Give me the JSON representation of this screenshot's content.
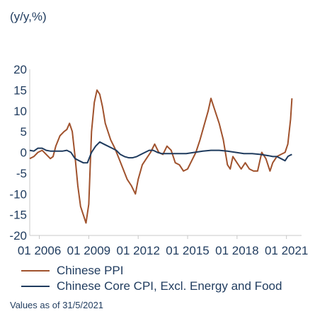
{
  "chart_data": {
    "type": "line",
    "unit_label": "(y/y,%)",
    "ylim": [
      -20,
      20
    ],
    "yticks": [
      20,
      15,
      10,
      5,
      0,
      -5,
      -10,
      -15,
      -20
    ],
    "xlim": [
      "2005-06",
      "2021-12"
    ],
    "xticks": [
      {
        "date": "2006-01",
        "label": "01 2006"
      },
      {
        "date": "2009-01",
        "label": "01 2009"
      },
      {
        "date": "2012-01",
        "label": "01 2012"
      },
      {
        "date": "2015-01",
        "label": "01 2015"
      },
      {
        "date": "2018-01",
        "label": "01 2018"
      },
      {
        "date": "2021-01",
        "label": "01 2021"
      }
    ],
    "grid": false,
    "legend_position": "bottom-left",
    "footnote": "Values as of 31/5/2021",
    "series": [
      {
        "name": "Chinese PPI",
        "color": "#a0522d",
        "points": [
          [
            "2005-06",
            -1.5
          ],
          [
            "2005-09",
            -1.0
          ],
          [
            "2005-12",
            0.0
          ],
          [
            "2006-03",
            0.5
          ],
          [
            "2006-06",
            -0.5
          ],
          [
            "2006-09",
            -1.5
          ],
          [
            "2006-11",
            -1.0
          ],
          [
            "2007-01",
            1.5
          ],
          [
            "2007-04",
            4.0
          ],
          [
            "2007-07",
            5.0
          ],
          [
            "2007-09",
            5.5
          ],
          [
            "2007-11",
            7.0
          ],
          [
            "2008-01",
            5.0
          ],
          [
            "2008-03",
            -1.0
          ],
          [
            "2008-05",
            -8.0
          ],
          [
            "2008-07",
            -13.0
          ],
          [
            "2008-09",
            -15.0
          ],
          [
            "2008-11",
            -17.0
          ],
          [
            "2009-01",
            -12.5
          ],
          [
            "2009-03",
            5.0
          ],
          [
            "2009-05",
            12.0
          ],
          [
            "2009-07",
            15.0
          ],
          [
            "2009-09",
            14.0
          ],
          [
            "2009-11",
            11.0
          ],
          [
            "2010-01",
            7.0
          ],
          [
            "2010-03",
            5.0
          ],
          [
            "2010-05",
            3.0
          ],
          [
            "2010-08",
            1.0
          ],
          [
            "2010-11",
            -1.5
          ],
          [
            "2011-02",
            -4.0
          ],
          [
            "2011-05",
            -6.5
          ],
          [
            "2011-08",
            -8.0
          ],
          [
            "2011-11",
            -10.0
          ],
          [
            "2012-01",
            -6.5
          ],
          [
            "2012-04",
            -3.0
          ],
          [
            "2012-07",
            -1.5
          ],
          [
            "2012-10",
            0.0
          ],
          [
            "2013-01",
            2.0
          ],
          [
            "2013-04",
            0.0
          ],
          [
            "2013-07",
            -0.5
          ],
          [
            "2013-10",
            1.5
          ],
          [
            "2014-01",
            0.5
          ],
          [
            "2014-04",
            -2.5
          ],
          [
            "2014-07",
            -3.0
          ],
          [
            "2014-10",
            -4.5
          ],
          [
            "2015-01",
            -4.0
          ],
          [
            "2015-04",
            -2.0
          ],
          [
            "2015-07",
            0.0
          ],
          [
            "2015-10",
            3.0
          ],
          [
            "2016-01",
            6.5
          ],
          [
            "2016-04",
            10.0
          ],
          [
            "2016-06",
            13.0
          ],
          [
            "2016-09",
            10.0
          ],
          [
            "2016-12",
            7.0
          ],
          [
            "2017-03",
            3.0
          ],
          [
            "2017-06",
            -3.0
          ],
          [
            "2017-08",
            -4.0
          ],
          [
            "2017-10",
            -1.0
          ],
          [
            "2018-01",
            -2.5
          ],
          [
            "2018-04",
            -4.0
          ],
          [
            "2018-07",
            -2.5
          ],
          [
            "2018-10",
            -4.0
          ],
          [
            "2019-01",
            -4.5
          ],
          [
            "2019-04",
            -4.5
          ],
          [
            "2019-07",
            0.0
          ],
          [
            "2019-10",
            -1.5
          ],
          [
            "2020-01",
            -4.5
          ],
          [
            "2020-03",
            -2.5
          ],
          [
            "2020-06",
            -1.0
          ],
          [
            "2020-09",
            -0.5
          ],
          [
            "2020-12",
            0.0
          ],
          [
            "2021-02",
            2.0
          ],
          [
            "2021-04",
            8.0
          ],
          [
            "2021-05",
            13.0
          ]
        ]
      },
      {
        "name": "Chinese Core CPI, Excl. Energy and Food",
        "color": "#1f3b5e",
        "points": [
          [
            "2005-06",
            0.5
          ],
          [
            "2005-09",
            0.3
          ],
          [
            "2005-12",
            1.0
          ],
          [
            "2006-03",
            1.0
          ],
          [
            "2006-06",
            0.5
          ],
          [
            "2006-09",
            0.3
          ],
          [
            "2006-12",
            0.3
          ],
          [
            "2007-03",
            0.3
          ],
          [
            "2007-06",
            0.3
          ],
          [
            "2007-09",
            0.5
          ],
          [
            "2007-12",
            0.0
          ],
          [
            "2008-03",
            -1.5
          ],
          [
            "2008-06",
            -2.0
          ],
          [
            "2008-09",
            -2.5
          ],
          [
            "2008-12",
            -2.5
          ],
          [
            "2009-03",
            0.0
          ],
          [
            "2009-06",
            1.5
          ],
          [
            "2009-09",
            2.5
          ],
          [
            "2009-12",
            2.0
          ],
          [
            "2010-03",
            1.5
          ],
          [
            "2010-06",
            1.0
          ],
          [
            "2010-09",
            0.5
          ],
          [
            "2010-12",
            -0.5
          ],
          [
            "2011-03",
            -1.0
          ],
          [
            "2011-06",
            -1.3
          ],
          [
            "2011-09",
            -1.3
          ],
          [
            "2011-12",
            -1.0
          ],
          [
            "2012-03",
            -0.5
          ],
          [
            "2012-06",
            0.0
          ],
          [
            "2012-09",
            0.5
          ],
          [
            "2012-12",
            0.5
          ],
          [
            "2013-03",
            0.0
          ],
          [
            "2013-06",
            -0.3
          ],
          [
            "2013-09",
            -0.3
          ],
          [
            "2013-12",
            -0.3
          ],
          [
            "2014-06",
            -0.3
          ],
          [
            "2014-12",
            -0.3
          ],
          [
            "2015-06",
            0.0
          ],
          [
            "2015-12",
            0.3
          ],
          [
            "2016-06",
            0.5
          ],
          [
            "2016-12",
            0.5
          ],
          [
            "2017-06",
            0.3
          ],
          [
            "2017-12",
            0.0
          ],
          [
            "2018-06",
            -0.3
          ],
          [
            "2018-12",
            -0.3
          ],
          [
            "2019-06",
            -0.5
          ],
          [
            "2019-12",
            -0.8
          ],
          [
            "2020-03",
            -1.0
          ],
          [
            "2020-06",
            -1.0
          ],
          [
            "2020-09",
            -1.5
          ],
          [
            "2020-12",
            -2.0
          ],
          [
            "2021-02",
            -1.0
          ],
          [
            "2021-03",
            -0.8
          ],
          [
            "2021-05",
            -0.5
          ]
        ]
      }
    ]
  }
}
